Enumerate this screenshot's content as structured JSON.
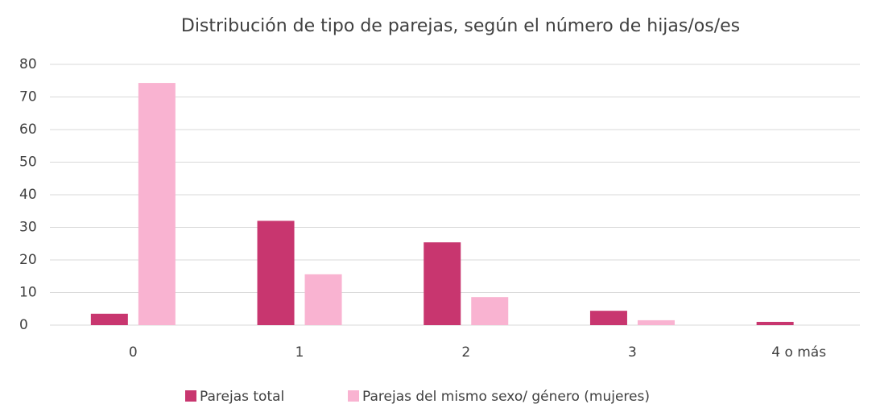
{
  "chart_data": {
    "type": "bar",
    "title": "Distribución de tipo de parejas, según el número de hijas/os/es",
    "categories": [
      "0",
      "1",
      "2",
      "3",
      "4 o más"
    ],
    "series": [
      {
        "name": "Parejas total",
        "color": "#c8366f",
        "values": [
          3.5,
          32,
          25.4,
          4.4,
          1.0
        ]
      },
      {
        "name": "Parejas del mismo sexo/ género (mujeres)",
        "color": "#f9b3d1",
        "values": [
          74.3,
          15.6,
          8.6,
          1.5,
          0
        ]
      }
    ],
    "ylim": [
      0,
      80
    ],
    "yticks": [
      0,
      10,
      20,
      30,
      40,
      50,
      60,
      70,
      80
    ],
    "grid": true,
    "legend": "bottom"
  }
}
